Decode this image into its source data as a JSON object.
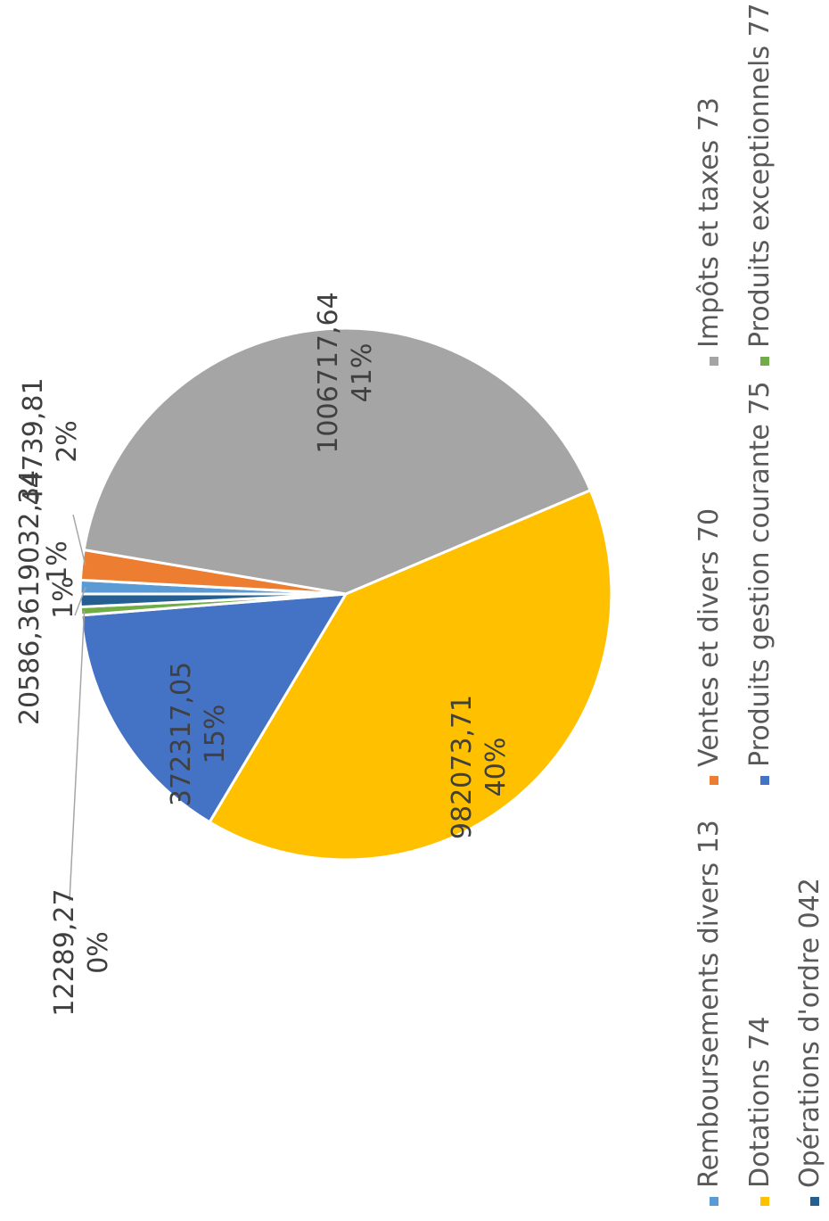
{
  "chart_data": {
    "type": "pie",
    "title": "",
    "categories": [
      "Remboursements divers 13",
      "Ventes et divers 70",
      "Impôts et taxes 73",
      "Dotations 74",
      "Produits gestion courante 75",
      "Produits exceptionnels 77",
      "Opérations d'ordre 042"
    ],
    "values": [
      20586.36,
      44739.81,
      1006717.64,
      982073.71,
      372317.05,
      12289.27,
      19032.34
    ],
    "value_labels": [
      "20586,36",
      "44739,81",
      "1006717,64",
      "982073,71",
      "372317,05",
      "12289,27",
      "19032,34"
    ],
    "percent_labels": [
      "1%",
      "2%",
      "41%",
      "40%",
      "15%",
      "0%",
      "1%"
    ],
    "colors": [
      "#5B9BD5",
      "#ED7D31",
      "#A5A5A5",
      "#FFC000",
      "#4472C4",
      "#70AD47",
      "#255E91"
    ],
    "legend_position": "bottom"
  }
}
